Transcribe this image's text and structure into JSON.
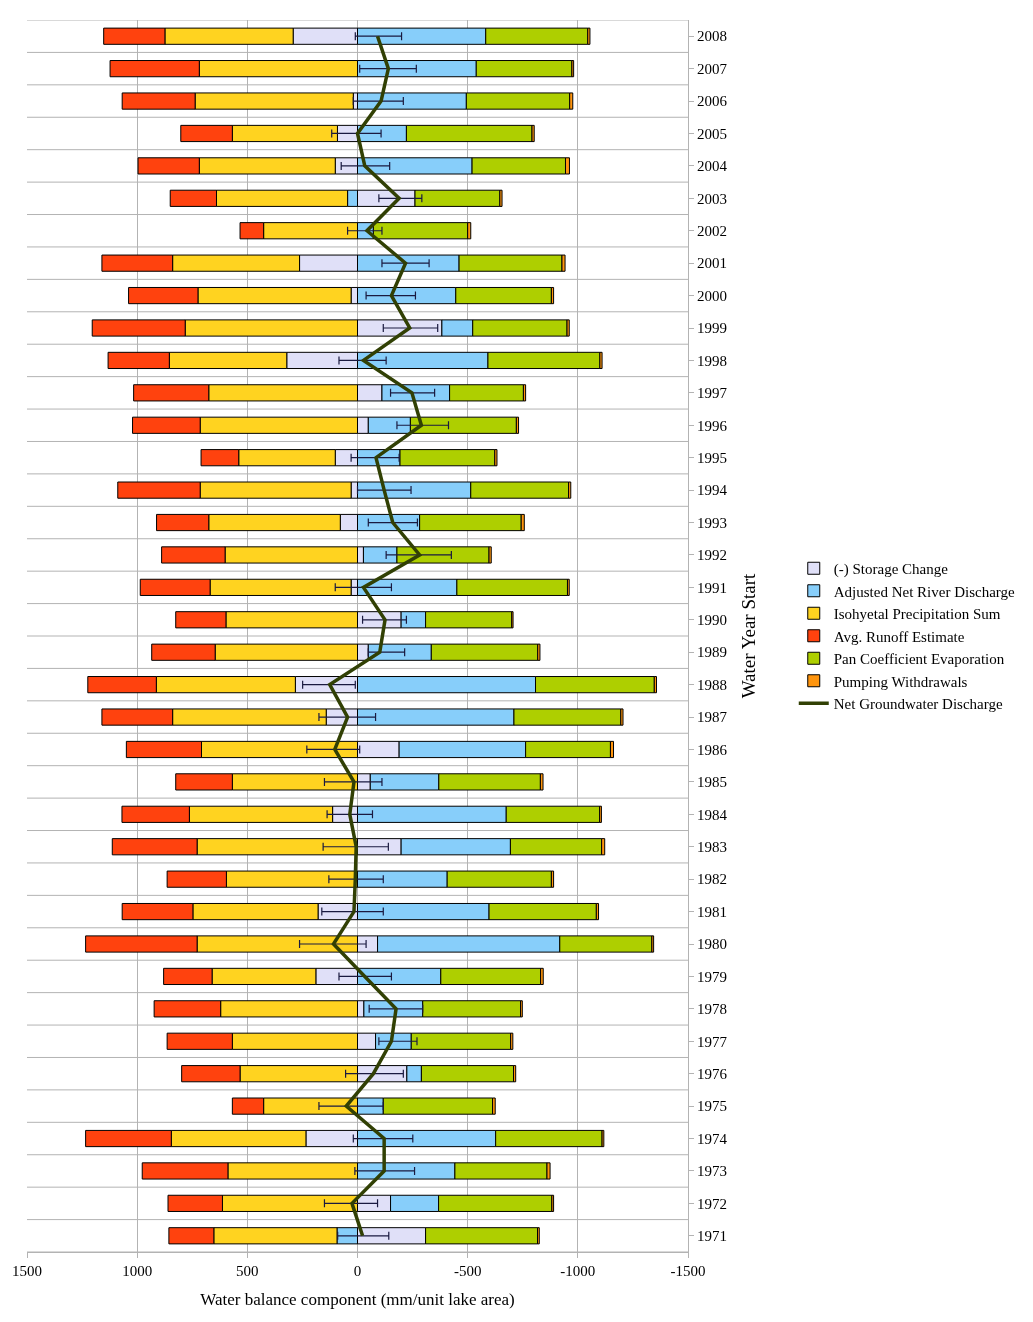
{
  "chart_data": {
    "type": "bar",
    "orientation": "horizontal",
    "stacked": true,
    "xlabel": "Water balance component (mm/unit lake area)",
    "ylabel": "Water Year Start",
    "categories": [
      "2008",
      "2007",
      "2006",
      "2005",
      "2004",
      "2003",
      "2002",
      "2001",
      "2000",
      "1999",
      "1998",
      "1997",
      "1996",
      "1995",
      "1994",
      "1993",
      "1992",
      "1991",
      "1990",
      "1989",
      "1988",
      "1987",
      "1986",
      "1985",
      "1984",
      "1983",
      "1982",
      "1981",
      "1980",
      "1979",
      "1978",
      "1977",
      "1976",
      "1975",
      "1974",
      "1973",
      "1972",
      "1971"
    ],
    "xlim": [
      1500,
      -1500
    ],
    "xticks": [
      1500,
      1000,
      500,
      0,
      -500,
      -1000,
      -1500
    ],
    "grid": true,
    "legend": "right",
    "series": [
      {
        "name": "(-) Storage Change",
        "color": "#e0e0f8",
        "values": [
          292,
          0,
          19,
          91,
          101,
          -261,
          null,
          263,
          29,
          -383,
          321,
          -111,
          -49,
          101,
          29,
          78,
          -27,
          29,
          -198,
          -49,
          282,
          142,
          -189,
          -58,
          113,
          -198,
          null,
          179,
          -91,
          189,
          -29,
          -82,
          -224,
          0,
          234,
          null,
          -150,
          -309
        ]
      },
      {
        "name": "Adjusted Net River Discharge",
        "color": "#87cefa",
        "values": [
          -582,
          -539,
          -494,
          -222,
          -520,
          45,
          -72,
          -461,
          -446,
          -140,
          -592,
          -307,
          -191,
          -193,
          -514,
          -282,
          -152,
          -451,
          -111,
          -286,
          -808,
          -710,
          -574,
          -311,
          -675,
          -496,
          -407,
          -597,
          -827,
          -378,
          -267,
          -162,
          -66,
          -117,
          -627,
          -442,
          -218,
          93
        ]
      },
      {
        "name": "Isohyetal Precipitation Sum",
        "color": "#ffd320",
        "values": [
          582,
          718,
          718,
          477,
          617,
          595,
          426,
          576,
          695,
          782,
          533,
          675,
          714,
          438,
          685,
          597,
          601,
          640,
          597,
          646,
          631,
          697,
          708,
          568,
          650,
          728,
          595,
          568,
          728,
          471,
          621,
          568,
          533,
          426,
          611,
          588,
          613,
          559
        ]
      },
      {
        "name": "Avg. Runoff Estimate",
        "color": "#ff420e",
        "values": [
          278,
          405,
          331,
          234,
          278,
          210,
          107,
          321,
          315,
          422,
          278,
          341,
          307,
          171,
          374,
          237,
          288,
          317,
          228,
          288,
          311,
          321,
          341,
          257,
          306,
          385,
          269,
          321,
          506,
          220,
          302,
          296,
          265,
          142,
          389,
          389,
          247,
          204
        ]
      },
      {
        "name": "Pan Coefficient Evaporation",
        "color": "#aecf00",
        "values": [
          -463,
          -434,
          -469,
          -570,
          -424,
          -385,
          -428,
          -467,
          -434,
          -428,
          -508,
          -335,
          -481,
          -430,
          -444,
          -461,
          -418,
          -502,
          -391,
          -483,
          -539,
          -485,
          -385,
          -461,
          -424,
          -414,
          -473,
          -487,
          -418,
          -453,
          -444,
          -451,
          -418,
          -496,
          -483,
          -418,
          -514,
          -508
        ]
      },
      {
        "name": "Pumping Withdrawals",
        "color": "#ff950e",
        "values": [
          -10,
          -8,
          -14,
          -10,
          -18,
          -10,
          -14,
          -14,
          -10,
          -10,
          -10,
          -10,
          -10,
          -10,
          -10,
          -14,
          -10,
          -8,
          -6,
          -10,
          -10,
          -10,
          -14,
          -12,
          -8,
          -14,
          -10,
          -10,
          -8,
          -12,
          -8,
          -10,
          -10,
          -12,
          -8,
          -14,
          -8,
          -8
        ]
      },
      {
        "name": "Net Groundwater Discharge",
        "type": "line",
        "color": "#314004",
        "values": [
          -91,
          -140,
          -107,
          0,
          -33,
          -189,
          -43,
          -218,
          -154,
          -237,
          -27,
          -247,
          -290,
          -84,
          -121,
          -160,
          -282,
          -27,
          -125,
          -101,
          126,
          45,
          103,
          16,
          35,
          6,
          10,
          16,
          109,
          -33,
          -175,
          -154,
          -72,
          51,
          -121,
          -121,
          25,
          -23
        ],
        "errors": [
          [
            -200,
            10
          ],
          [
            -267,
            -10
          ],
          [
            -208,
            19
          ],
          [
            -107,
            117
          ],
          [
            -146,
            74
          ],
          [
            -292,
            -97
          ],
          [
            -111,
            45
          ],
          [
            -325,
            -111
          ],
          [
            -263,
            -39
          ],
          [
            -364,
            -117
          ],
          [
            -130,
            84
          ],
          [
            -350,
            -150
          ],
          [
            -413,
            -179
          ],
          [
            -189,
            29
          ],
          [
            -243,
            0
          ],
          [
            -272,
            -49
          ],
          [
            -426,
            -130
          ],
          [
            -154,
            101
          ],
          [
            -222,
            -23
          ],
          [
            -214,
            -49
          ],
          [
            10,
            249
          ],
          [
            -82,
            175
          ],
          [
            -10,
            230
          ],
          [
            -111,
            150
          ],
          [
            -68,
            138
          ],
          [
            -140,
            156
          ],
          [
            -117,
            130
          ],
          [
            -117,
            162
          ],
          [
            -39,
            263
          ],
          [
            -154,
            84
          ],
          [
            -296,
            -53
          ],
          [
            -270,
            -97
          ],
          [
            -208,
            54
          ],
          [
            -117,
            175
          ],
          [
            -251,
            19
          ],
          [
            -259,
            12
          ],
          [
            -91,
            150
          ],
          [
            -142,
            90
          ]
        ]
      }
    ]
  }
}
